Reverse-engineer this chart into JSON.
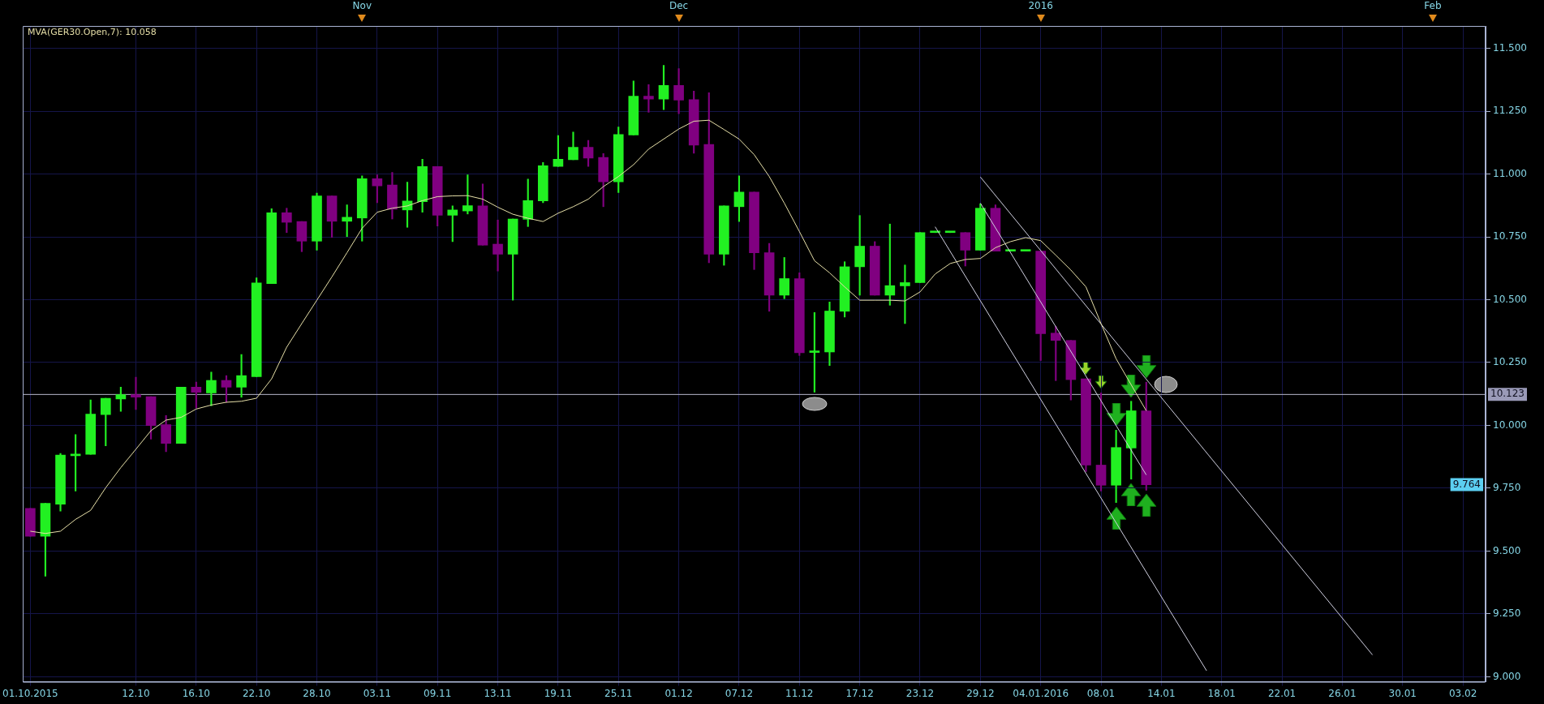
{
  "chart_data": {
    "type": "candlestick",
    "categories": [
      "01.10.2015",
      null,
      null,
      null,
      null,
      null,
      null,
      "12.10",
      null,
      null,
      null,
      "16.10",
      null,
      null,
      null,
      "22.10",
      null,
      null,
      null,
      "28.10",
      null,
      null,
      null,
      "03.11",
      null,
      null,
      null,
      "09.11",
      null,
      null,
      null,
      "13.11",
      null,
      null,
      null,
      "19.11",
      null,
      null,
      null,
      "25.11",
      null,
      null,
      null,
      "01.12",
      null,
      null,
      null,
      "07.12",
      null,
      null,
      null,
      "11.12",
      null,
      null,
      null,
      "17.12",
      null,
      null,
      null,
      "23.12",
      null,
      null,
      null,
      "29.12",
      null,
      null,
      null,
      "04.01.2016",
      null,
      null,
      null,
      "08.01",
      null,
      null,
      null,
      "14.01",
      null,
      null,
      null,
      "18.01",
      null,
      null,
      null,
      "22.01",
      null,
      null,
      null,
      "26.01",
      null,
      null,
      null,
      "30.01",
      null,
      null,
      null,
      "03.02",
      null
    ],
    "ohlc": [
      [
        9.67,
        9.67,
        9.559,
        9.559
      ],
      [
        9.559,
        9.69,
        9.4,
        9.69
      ],
      [
        9.686,
        9.888,
        9.659,
        9.882
      ],
      [
        9.879,
        9.963,
        9.739,
        9.886
      ],
      [
        9.885,
        10.101,
        9.885,
        10.045
      ],
      [
        10.043,
        10.108,
        9.919,
        10.108
      ],
      [
        10.105,
        10.152,
        10.056,
        10.122
      ],
      [
        10.122,
        10.192,
        10.063,
        10.112
      ],
      [
        10.114,
        10.114,
        9.945,
        9.999
      ],
      [
        10.003,
        10.039,
        9.895,
        9.928
      ],
      [
        9.928,
        10.152,
        9.928,
        10.152
      ],
      [
        10.152,
        10.172,
        10.069,
        10.132
      ],
      [
        10.129,
        10.212,
        10.078,
        10.179
      ],
      [
        10.179,
        10.198,
        10.092,
        10.152
      ],
      [
        10.152,
        10.282,
        10.112,
        10.198
      ],
      [
        10.194,
        10.587,
        10.194,
        10.567
      ],
      [
        10.564,
        10.862,
        10.564,
        10.846
      ],
      [
        10.846,
        10.864,
        10.767,
        10.808
      ],
      [
        10.811,
        10.811,
        10.691,
        10.733
      ],
      [
        10.733,
        10.924,
        10.697,
        10.913
      ],
      [
        10.913,
        10.913,
        10.748,
        10.812
      ],
      [
        10.812,
        10.877,
        10.751,
        10.828
      ],
      [
        10.825,
        10.993,
        10.733,
        10.981
      ],
      [
        10.981,
        10.997,
        10.886,
        10.953
      ],
      [
        10.956,
        11.006,
        10.821,
        10.86
      ],
      [
        10.857,
        10.968,
        10.788,
        10.893
      ],
      [
        10.89,
        11.059,
        10.848,
        11.03
      ],
      [
        11.03,
        11.03,
        10.793,
        10.836
      ],
      [
        10.836,
        10.873,
        10.731,
        10.857
      ],
      [
        10.853,
        10.997,
        10.841,
        10.874
      ],
      [
        10.873,
        10.96,
        10.717,
        10.717
      ],
      [
        10.721,
        10.817,
        10.614,
        10.681
      ],
      [
        10.681,
        10.821,
        10.498,
        10.821
      ],
      [
        10.82,
        10.98,
        10.791,
        10.894
      ],
      [
        10.893,
        11.046,
        10.886,
        11.033
      ],
      [
        11.03,
        11.153,
        11.03,
        11.059
      ],
      [
        11.057,
        11.167,
        11.057,
        11.106
      ],
      [
        11.106,
        11.134,
        11.03,
        11.063
      ],
      [
        11.066,
        11.081,
        10.87,
        10.969
      ],
      [
        10.969,
        11.187,
        10.926,
        11.157
      ],
      [
        11.155,
        11.37,
        11.155,
        11.31
      ],
      [
        11.31,
        11.356,
        11.246,
        11.298
      ],
      [
        11.298,
        11.432,
        11.256,
        11.352
      ],
      [
        11.352,
        11.419,
        11.24,
        11.294
      ],
      [
        11.296,
        11.33,
        11.083,
        11.115
      ],
      [
        11.118,
        11.323,
        10.647,
        10.681
      ],
      [
        10.681,
        10.873,
        10.637,
        10.873
      ],
      [
        10.87,
        10.993,
        10.811,
        10.928
      ],
      [
        10.928,
        10.928,
        10.62,
        10.687
      ],
      [
        10.687,
        10.724,
        10.454,
        10.518
      ],
      [
        10.518,
        10.668,
        10.504,
        10.584
      ],
      [
        10.584,
        10.607,
        10.278,
        10.289
      ],
      [
        10.29,
        10.449,
        10.132,
        10.292
      ],
      [
        10.292,
        10.491,
        10.238,
        10.455
      ],
      [
        10.454,
        10.651,
        10.431,
        10.631
      ],
      [
        10.631,
        10.835,
        10.518,
        10.713
      ],
      [
        10.713,
        10.731,
        10.518,
        10.518
      ],
      [
        10.518,
        10.801,
        10.478,
        10.556
      ],
      [
        10.555,
        10.638,
        10.405,
        10.568
      ],
      [
        10.568,
        10.767,
        10.568,
        10.767
      ],
      [
        10.767,
        10.767,
        10.767,
        10.767
      ],
      [
        10.767,
        10.767,
        10.767,
        10.767
      ],
      [
        10.767,
        10.767,
        10.634,
        10.697
      ],
      [
        10.697,
        10.881,
        10.697,
        10.864
      ],
      [
        10.864,
        10.877,
        10.693,
        10.693
      ],
      [
        10.693,
        10.693,
        10.693,
        10.693
      ],
      [
        10.693,
        10.693,
        10.693,
        10.693
      ],
      [
        10.693,
        10.693,
        10.258,
        10.365
      ],
      [
        10.367,
        10.394,
        10.178,
        10.338
      ],
      [
        10.338,
        10.338,
        10.101,
        10.182
      ],
      [
        10.185,
        10.185,
        9.816,
        9.842
      ],
      [
        9.842,
        10.129,
        9.739,
        9.762
      ],
      [
        9.762,
        9.981,
        9.693,
        9.912
      ],
      [
        9.91,
        10.096,
        9.786,
        10.058
      ],
      [
        10.058,
        10.172,
        9.742,
        9.764
      ],
      null,
      null,
      null,
      null,
      null,
      null,
      null,
      null,
      null,
      null,
      null,
      null,
      null,
      null,
      null,
      null,
      null,
      null,
      null,
      null,
      null,
      null
    ],
    "colors": [
      "#800080",
      "#22f022",
      "#22f022",
      "#22f022",
      "#22f022",
      "#22f022",
      "#22f022",
      "#800080",
      "#800080",
      "#800080",
      "#22f022",
      "#800080",
      "#22f022",
      "#800080",
      "#22f022",
      "#22f022",
      "#22f022",
      "#800080",
      "#800080",
      "#22f022",
      "#800080",
      "#22f022",
      "#22f022",
      "#800080",
      "#800080",
      "#22f022",
      "#22f022",
      "#800080",
      "#22f022",
      "#22f022",
      "#800080",
      "#800080",
      "#22f022",
      "#22f022",
      "#22f022",
      "#22f022",
      "#22f022",
      "#800080",
      "#800080",
      "#22f022",
      "#22f022",
      "#800080",
      "#22f022",
      "#800080",
      "#800080",
      "#800080",
      "#22f022",
      "#22f022",
      "#800080",
      "#800080",
      "#22f022",
      "#800080",
      "#22f022",
      "#22f022",
      "#22f022",
      "#22f022",
      "#800080",
      "#22f022",
      "#22f022",
      "#22f022",
      "#22f022",
      "#22f022",
      "#800080",
      "#22f022",
      "#800080",
      "#22f022",
      "#22f022",
      "#800080",
      "#800080",
      "#800080",
      "#800080",
      "#800080",
      "#22f022",
      "#22f022",
      "#800080",
      null,
      null,
      null,
      null,
      null,
      null,
      null,
      null,
      null,
      null,
      null,
      null,
      null,
      null,
      null,
      null,
      null,
      null,
      null,
      null,
      null,
      null
    ],
    "series": [
      {
        "type": "line",
        "name": "MVA(GER30.Open,7): 10.058",
        "color": "#e6dfa8",
        "values": [
          9.579,
          9.57,
          9.579,
          9.626,
          9.662,
          9.752,
          9.832,
          9.905,
          9.979,
          10.021,
          10.032,
          10.065,
          10.081,
          10.092,
          10.096,
          10.108,
          10.185,
          10.311,
          10.405,
          10.498,
          10.591,
          10.687,
          10.784,
          10.848,
          10.864,
          10.873,
          10.894,
          10.91,
          10.913,
          10.914,
          10.9,
          10.868,
          10.84,
          10.824,
          10.811,
          10.844,
          10.87,
          10.9,
          10.95,
          10.99,
          11.037,
          11.099,
          11.139,
          11.179,
          11.21,
          11.214,
          11.177,
          11.139,
          11.077,
          10.99,
          10.884,
          10.771,
          10.655,
          10.607,
          10.551,
          10.498,
          10.498,
          10.498,
          10.495,
          10.531,
          10.602,
          10.644,
          10.66,
          10.664,
          10.707,
          10.731,
          10.747,
          10.735,
          10.677,
          10.618,
          10.551,
          10.405,
          10.265,
          null,
          10.058,
          null,
          null,
          null,
          null,
          null,
          null,
          null,
          null,
          null,
          null,
          null,
          null,
          null,
          null,
          null,
          null,
          null,
          null,
          null,
          null,
          null,
          null
        ]
      },
      {
        "type": "line",
        "color": "#d0d0e0",
        "values": [
          null,
          null,
          null,
          null,
          null,
          null,
          null,
          null,
          null,
          null,
          null,
          null,
          null,
          null,
          null,
          null,
          null,
          null,
          null,
          null,
          null,
          null,
          null,
          null,
          null,
          null,
          null,
          null,
          null,
          null,
          null,
          null,
          null,
          null,
          null,
          null,
          null,
          null,
          null,
          null,
          null,
          null,
          null,
          null,
          null,
          null,
          null,
          null,
          null,
          null,
          null,
          null,
          null,
          null,
          null,
          null,
          null,
          null,
          null,
          null,
          null,
          null,
          null,
          10.988,
          null,
          null,
          null,
          null,
          null,
          null,
          null,
          null,
          null,
          null,
          null,
          null,
          null,
          null,
          null,
          null,
          null,
          null,
          null,
          null,
          null,
          null,
          null,
          null,
          null,
          9.087,
          null,
          null,
          null,
          null,
          null,
          null,
          null
        ]
      },
      {
        "type": "line",
        "color": "#d0d0e0",
        "values": [
          null,
          null,
          null,
          null,
          null,
          null,
          null,
          null,
          null,
          null,
          null,
          null,
          null,
          null,
          null,
          null,
          null,
          null,
          null,
          null,
          null,
          null,
          null,
          null,
          null,
          null,
          null,
          null,
          null,
          null,
          null,
          null,
          null,
          null,
          null,
          null,
          null,
          null,
          null,
          null,
          null,
          null,
          null,
          null,
          null,
          null,
          null,
          null,
          null,
          null,
          null,
          null,
          null,
          null,
          null,
          null,
          null,
          null,
          null,
          null,
          10.79,
          null,
          null,
          null,
          null,
          null,
          null,
          null,
          null,
          null,
          null,
          null,
          null,
          null,
          null,
          null,
          null,
          null,
          9.024,
          null,
          null,
          null,
          null,
          null,
          null,
          null,
          null,
          null,
          null,
          null,
          null,
          null,
          null,
          null,
          null,
          null,
          null
        ]
      },
      {
        "type": "line",
        "color": "#d0d0e0",
        "values": [
          null,
          null,
          null,
          null,
          null,
          null,
          null,
          null,
          null,
          null,
          null,
          null,
          null,
          null,
          null,
          null,
          null,
          null,
          null,
          null,
          null,
          null,
          null,
          null,
          null,
          null,
          null,
          null,
          null,
          null,
          null,
          null,
          null,
          null,
          null,
          null,
          null,
          null,
          null,
          null,
          null,
          null,
          null,
          null,
          null,
          null,
          null,
          null,
          null,
          null,
          null,
          null,
          null,
          null,
          null,
          null,
          null,
          null,
          null,
          null,
          null,
          null,
          null,
          10.884,
          null,
          null,
          null,
          null,
          null,
          null,
          null,
          null,
          null,
          null,
          9.803,
          null,
          null,
          null,
          null,
          null,
          null,
          null,
          null,
          null,
          null,
          null,
          null,
          null,
          null,
          null,
          null,
          null,
          null,
          null,
          null,
          null,
          null
        ]
      }
    ],
    "ylim": [
      8.98,
      11.589
    ],
    "yticks": [
      {
        "value": 9,
        "label": "9.000"
      },
      {
        "value": 9.25,
        "label": "9.250"
      },
      {
        "value": 9.5,
        "label": "9.500"
      },
      {
        "value": 9.75,
        "label": "9.750"
      },
      {
        "value": 10,
        "label": "10.000"
      },
      {
        "value": 10.25,
        "label": "10.250"
      },
      {
        "value": 10.5,
        "label": "10.500"
      },
      {
        "value": 10.75,
        "label": "10.750"
      },
      {
        "value": 11,
        "label": "11.000"
      },
      {
        "value": 11.25,
        "label": "11.250"
      },
      {
        "value": 11.5,
        "label": "11.500"
      }
    ],
    "grid": true,
    "legend": "top left",
    "marker": "none",
    "ref_lines": [
      {
        "axis": "y",
        "value": 10.123,
        "label": "10.123",
        "color": "#b8b8cc"
      }
    ],
    "annotations": [
      "Nov",
      "Dec",
      "2016",
      "Feb",
      {
        "text": "9.764",
        "y": 9.764
      }
    ]
  }
}
